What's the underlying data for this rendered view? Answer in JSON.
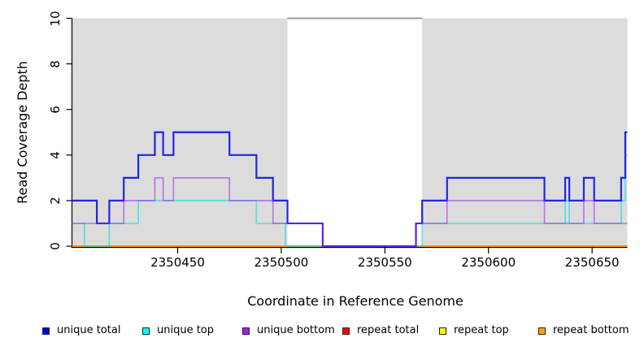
{
  "chart_data": {
    "type": "line",
    "line_style": "step",
    "xlabel": "Coordinate in Reference Genome",
    "ylabel": "Read Coverage Depth",
    "xlim": [
      2350399,
      2350667
    ],
    "ylim": [
      0,
      10
    ],
    "x_ticks": [
      2350450,
      2350500,
      2350550,
      2350600,
      2350650
    ],
    "y_ticks": [
      0,
      2,
      4,
      6,
      8,
      10
    ],
    "grid": false,
    "legend_position": "bottom",
    "plot_bg": "#ffffff",
    "shaded_regions": [
      {
        "x_start": 2350399,
        "x_end": 2350503,
        "color": "#DCDCDC"
      },
      {
        "x_start": 2350568,
        "x_end": 2350667,
        "color": "#DCDCDC"
      }
    ],
    "gap_top_line": {
      "x_start": 2350503,
      "x_end": 2350568,
      "y": 10,
      "color": "#999999"
    },
    "render_order": [
      "repeat total",
      "repeat top",
      "repeat bottom",
      "unique top",
      "unique total",
      "unique bottom"
    ],
    "series": [
      {
        "name": "unique total",
        "color": "#2323E8",
        "opacity": 1,
        "width": 2.2,
        "steps": [
          [
            2350399,
            2
          ],
          [
            2350411,
            1
          ],
          [
            2350417,
            2
          ],
          [
            2350424,
            3
          ],
          [
            2350431,
            4
          ],
          [
            2350439,
            5
          ],
          [
            2350443,
            4
          ],
          [
            2350448,
            5
          ],
          [
            2350475,
            4
          ],
          [
            2350488,
            3
          ],
          [
            2350496,
            2
          ],
          [
            2350503,
            1
          ],
          [
            2350520,
            0
          ],
          [
            2350565,
            1
          ],
          [
            2350568,
            2
          ],
          [
            2350580,
            3
          ],
          [
            2350627,
            2
          ],
          [
            2350637,
            3
          ],
          [
            2350639,
            2
          ],
          [
            2350646,
            3
          ],
          [
            2350651,
            2
          ],
          [
            2350664,
            3
          ],
          [
            2350666,
            5
          ],
          [
            2350667,
            5
          ]
        ]
      },
      {
        "name": "unique top",
        "color": "#00E0E0",
        "opacity": 0.6,
        "width": 1.7,
        "steps": [
          [
            2350399,
            1
          ],
          [
            2350405,
            0
          ],
          [
            2350417,
            1
          ],
          [
            2350431,
            2
          ],
          [
            2350488,
            1
          ],
          [
            2350502,
            0
          ],
          [
            2350568,
            1
          ],
          [
            2350637,
            2
          ],
          [
            2350639,
            1
          ],
          [
            2350664,
            2
          ],
          [
            2350666,
            4
          ],
          [
            2350667,
            4
          ]
        ]
      },
      {
        "name": "unique bottom",
        "color": "#A020F0",
        "opacity": 0.55,
        "width": 1.7,
        "steps": [
          [
            2350399,
            1
          ],
          [
            2350424,
            2
          ],
          [
            2350439,
            3
          ],
          [
            2350443,
            2
          ],
          [
            2350448,
            3
          ],
          [
            2350475,
            2
          ],
          [
            2350496,
            1
          ],
          [
            2350520,
            0
          ],
          [
            2350565,
            1
          ],
          [
            2350580,
            2
          ],
          [
            2350627,
            1
          ],
          [
            2350646,
            2
          ],
          [
            2350651,
            1
          ],
          [
            2350667,
            1
          ]
        ]
      },
      {
        "name": "repeat total",
        "color": "#FF0000",
        "opacity": 1,
        "width": 1.5,
        "steps": [
          [
            2350399,
            0
          ],
          [
            2350667,
            0
          ]
        ]
      },
      {
        "name": "repeat top",
        "color": "#FFFF00",
        "opacity": 1,
        "width": 1.5,
        "steps": [
          [
            2350399,
            0
          ],
          [
            2350667,
            0
          ]
        ]
      },
      {
        "name": "repeat bottom",
        "color": "#FF8C00",
        "opacity": 1,
        "width": 2,
        "steps": [
          [
            2350399,
            0
          ],
          [
            2350667,
            0
          ]
        ]
      }
    ],
    "legend": [
      {
        "label": "unique total",
        "color": "#0000EE"
      },
      {
        "label": "unique top",
        "color": "#00FFFF"
      },
      {
        "label": "unique bottom",
        "color": "#A020F0"
      },
      {
        "label": "repeat total",
        "color": "#FF0000"
      },
      {
        "label": "repeat top",
        "color": "#FFFF00"
      },
      {
        "label": "repeat bottom",
        "color": "#FFA500"
      }
    ]
  }
}
